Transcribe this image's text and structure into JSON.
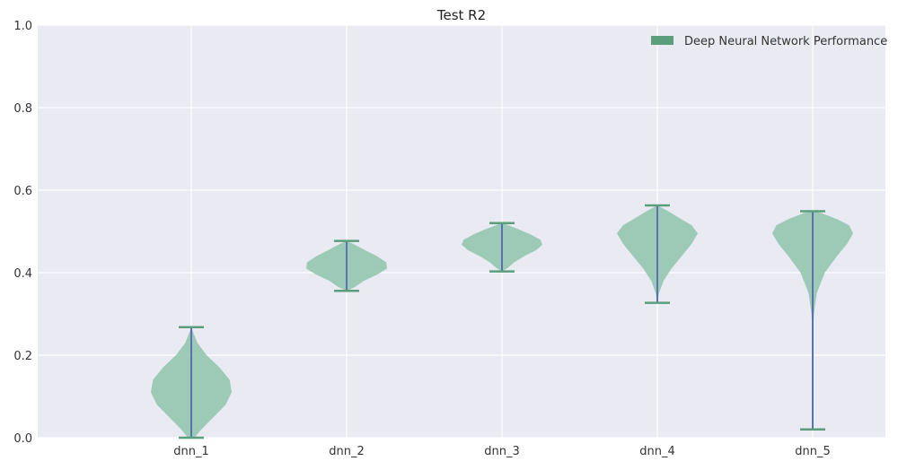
{
  "chart_data": {
    "type": "violin",
    "title": "Test R2",
    "xlabel": "",
    "ylabel": "",
    "ylim": [
      0,
      1.0
    ],
    "yticks": [
      "0.0",
      "0.2",
      "0.4",
      "0.6",
      "0.8",
      "1.0"
    ],
    "grid": true,
    "legend_position": "top-right",
    "legend": [
      "Deep Neural Network Performance"
    ],
    "categories": [
      "dnn_1",
      "dnn_2",
      "dnn_3",
      "dnn_4",
      "dnn_5"
    ],
    "series": [
      {
        "name": "Deep Neural Network Performance",
        "violins": [
          {
            "min": 0.0,
            "max": 0.268,
            "profile": [
              [
                0.0,
                0.08
              ],
              [
                0.02,
                0.25
              ],
              [
                0.05,
                0.55
              ],
              [
                0.08,
                0.85
              ],
              [
                0.11,
                1.0
              ],
              [
                0.14,
                0.95
              ],
              [
                0.17,
                0.7
              ],
              [
                0.2,
                0.38
              ],
              [
                0.23,
                0.15
              ],
              [
                0.26,
                0.03
              ],
              [
                0.268,
                0.0
              ]
            ]
          },
          {
            "min": 0.356,
            "max": 0.477,
            "profile": [
              [
                0.356,
                0.0
              ],
              [
                0.365,
                0.2
              ],
              [
                0.38,
                0.42
              ],
              [
                0.395,
                0.75
              ],
              [
                0.41,
                1.0
              ],
              [
                0.425,
                0.98
              ],
              [
                0.44,
                0.75
              ],
              [
                0.455,
                0.45
              ],
              [
                0.468,
                0.2
              ],
              [
                0.477,
                0.0
              ]
            ]
          },
          {
            "min": 0.403,
            "max": 0.52,
            "profile": [
              [
                0.403,
                0.0
              ],
              [
                0.412,
                0.15
              ],
              [
                0.425,
                0.3
              ],
              [
                0.44,
                0.55
              ],
              [
                0.455,
                0.85
              ],
              [
                0.468,
                1.0
              ],
              [
                0.48,
                0.95
              ],
              [
                0.493,
                0.7
              ],
              [
                0.505,
                0.42
              ],
              [
                0.515,
                0.15
              ],
              [
                0.52,
                0.0
              ]
            ]
          },
          {
            "min": 0.327,
            "max": 0.563,
            "profile": [
              [
                0.327,
                0.0
              ],
              [
                0.35,
                0.04
              ],
              [
                0.38,
                0.15
              ],
              [
                0.41,
                0.35
              ],
              [
                0.44,
                0.6
              ],
              [
                0.47,
                0.85
              ],
              [
                0.495,
                1.0
              ],
              [
                0.515,
                0.85
              ],
              [
                0.535,
                0.5
              ],
              [
                0.55,
                0.25
              ],
              [
                0.563,
                0.0
              ]
            ]
          },
          {
            "min": 0.02,
            "max": 0.549,
            "profile": [
              [
                0.02,
                0.0
              ],
              [
                0.25,
                0.0
              ],
              [
                0.3,
                0.03
              ],
              [
                0.35,
                0.1
              ],
              [
                0.4,
                0.3
              ],
              [
                0.44,
                0.6
              ],
              [
                0.47,
                0.85
              ],
              [
                0.495,
                1.0
              ],
              [
                0.515,
                0.9
              ],
              [
                0.53,
                0.6
              ],
              [
                0.545,
                0.2
              ],
              [
                0.549,
                0.0
              ]
            ]
          }
        ]
      }
    ],
    "colors": {
      "body": "#8ec4ad",
      "edge": "#5a9e7c",
      "stem": "#5b72b0",
      "legend_patch": "#5a9e7c",
      "background": "#eaeaf2",
      "grid": "#ffffff"
    }
  }
}
